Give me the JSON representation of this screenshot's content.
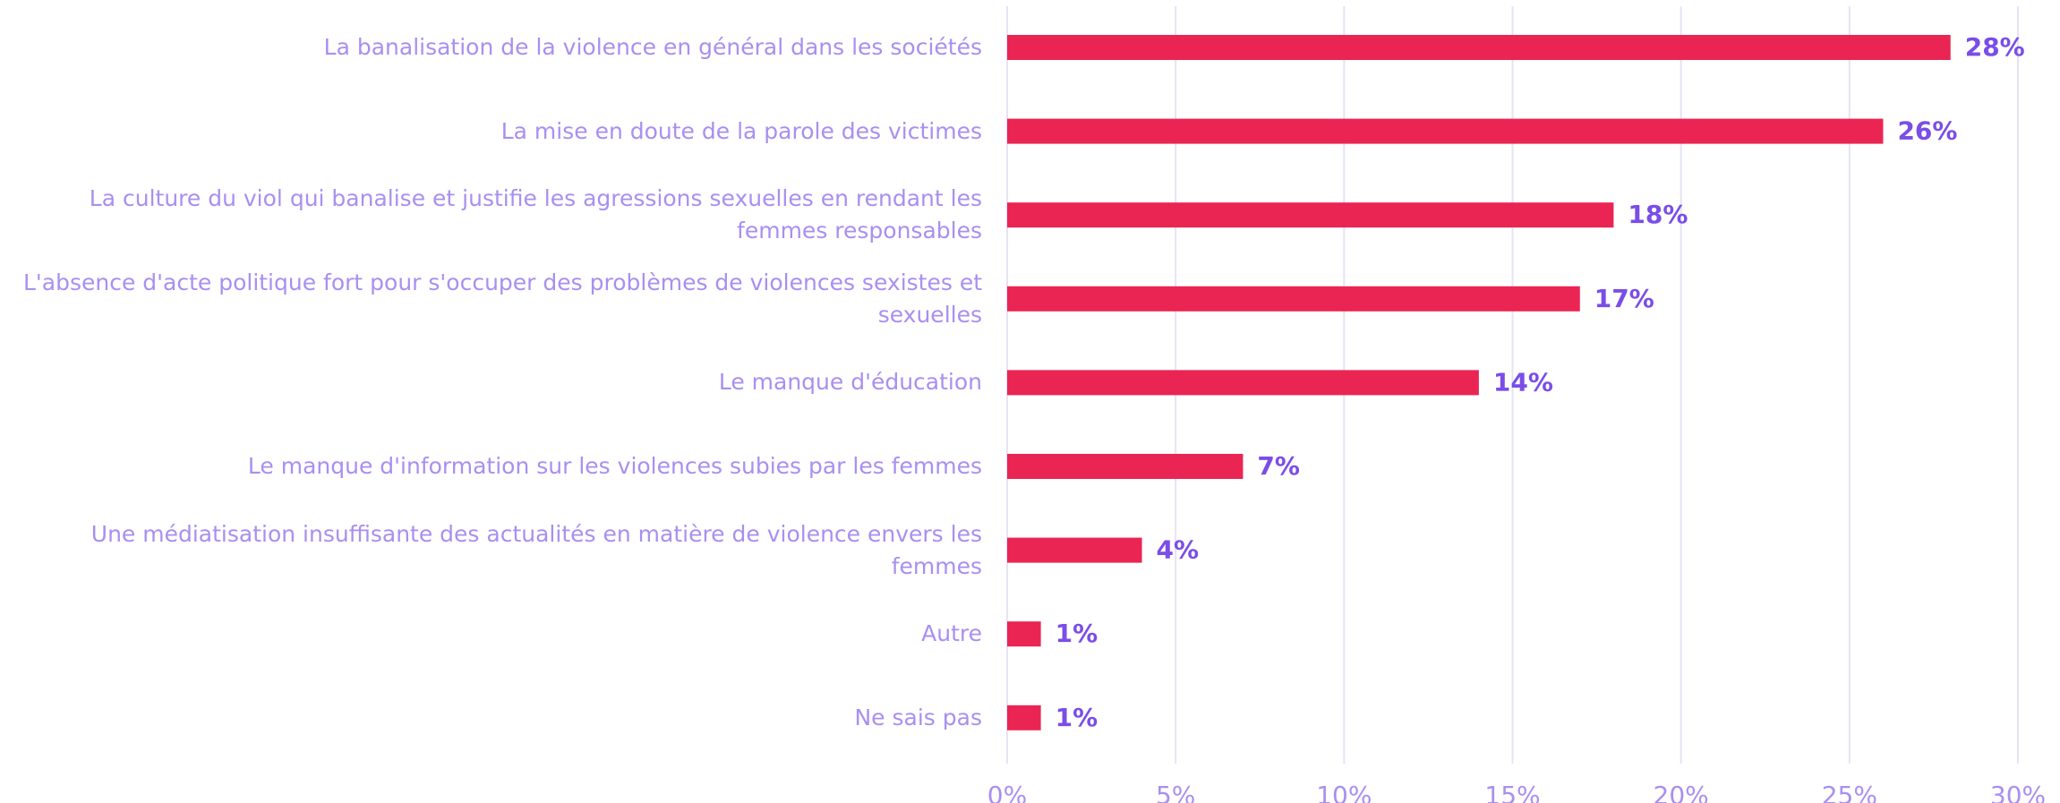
{
  "chart_data": {
    "type": "bar",
    "orientation": "horizontal",
    "categories": [
      "La banalisation de la violence en général dans les sociétés",
      "La mise en doute de la parole des victimes",
      "La culture du viol qui banalise et justifie les agressions sexuelles en rendant les femmes responsables",
      "L'absence d'acte politique fort pour s'occuper des problèmes de violences sexistes et sexuelles",
      "Le manque d'éducation",
      "Le manque d'information sur les violences subies par les femmes",
      "Une médiatisation insuffisante des actualités en matière de violence envers les femmes",
      "Autre",
      "Ne sais pas"
    ],
    "values": [
      28,
      26,
      18,
      17,
      14,
      7,
      4,
      1,
      1
    ],
    "value_labels": [
      "28%",
      "26%",
      "18%",
      "17%",
      "14%",
      "7%",
      "4%",
      "1%",
      "1%"
    ],
    "color": "#ea2553",
    "xlim": [
      0,
      30
    ],
    "xticks": [
      {
        "value": 0,
        "label": "0%"
      },
      {
        "value": 5,
        "label": "5%"
      },
      {
        "value": 10,
        "label": "10%"
      },
      {
        "value": 15,
        "label": "15%"
      },
      {
        "value": 20,
        "label": "20%"
      },
      {
        "value": 25,
        "label": "25%"
      },
      {
        "value": 30,
        "label": "30%"
      }
    ],
    "grid": true
  }
}
